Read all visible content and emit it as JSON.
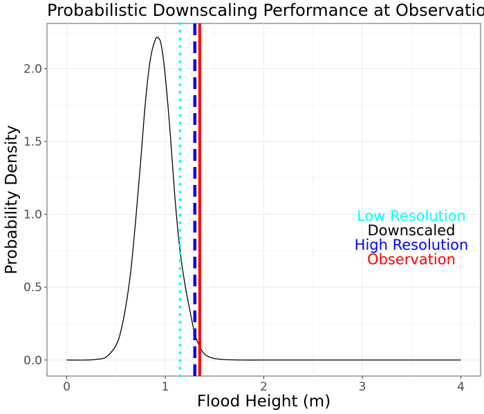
{
  "chart_data": {
    "type": "line",
    "title": "Probabilistic Downscaling Performance at Observation",
    "xlabel": "Flood Height (m)",
    "ylabel": "Probability Density",
    "xlim": [
      -0.2,
      4.2
    ],
    "ylim": [
      -0.11,
      2.31
    ],
    "x_ticks": [
      0,
      1,
      2,
      3,
      4
    ],
    "y_ticks": [
      0.0,
      0.5,
      1.0,
      1.5,
      2.0
    ],
    "x_tick_labels": [
      "0",
      "1",
      "2",
      "3",
      "4"
    ],
    "y_tick_labels": [
      "0.0",
      "0.5",
      "1.0",
      "1.5",
      "2.0"
    ],
    "grid": true,
    "series": [
      {
        "style": "solid",
        "color": "#000000",
        "x": [
          0.0,
          0.2,
          0.3,
          0.4,
          0.5,
          0.55,
          0.6,
          0.65,
          0.7,
          0.75,
          0.8,
          0.85,
          0.9,
          0.93,
          0.96,
          1.0,
          1.05,
          1.1,
          1.15,
          1.2,
          1.25,
          1.3,
          1.35,
          1.4,
          1.45,
          1.5,
          1.6,
          1.8,
          2.0,
          3.0,
          4.0
        ],
        "values": [
          0.0,
          0.0,
          0.005,
          0.02,
          0.1,
          0.2,
          0.37,
          0.61,
          0.96,
          1.36,
          1.78,
          2.07,
          2.2,
          2.21,
          2.16,
          1.95,
          1.56,
          1.1,
          0.75,
          0.52,
          0.34,
          0.18,
          0.09,
          0.04,
          0.02,
          0.01,
          0.003,
          0.0,
          0.0,
          0.0,
          0.0
        ]
      }
    ],
    "reference_lines": [
      {
        "name": "Low Resolution",
        "x": 1.15,
        "color": "#00FFFF",
        "style": "dotted"
      },
      {
        "name": "High Resolution",
        "x": 1.3,
        "color": "#0000FF",
        "style": "dashed"
      },
      {
        "name": "Observation",
        "x": 1.35,
        "color": "#FF0000",
        "style": "solid"
      }
    ],
    "legend": {
      "placement": "right",
      "entries": [
        {
          "label": "Low Resolution",
          "color": "#00FFFF"
        },
        {
          "label": "Downscaled",
          "color": "#000000"
        },
        {
          "label": "High Resolution",
          "color": "#0000FF"
        },
        {
          "label": "Observation",
          "color": "#FF0000"
        }
      ]
    }
  }
}
